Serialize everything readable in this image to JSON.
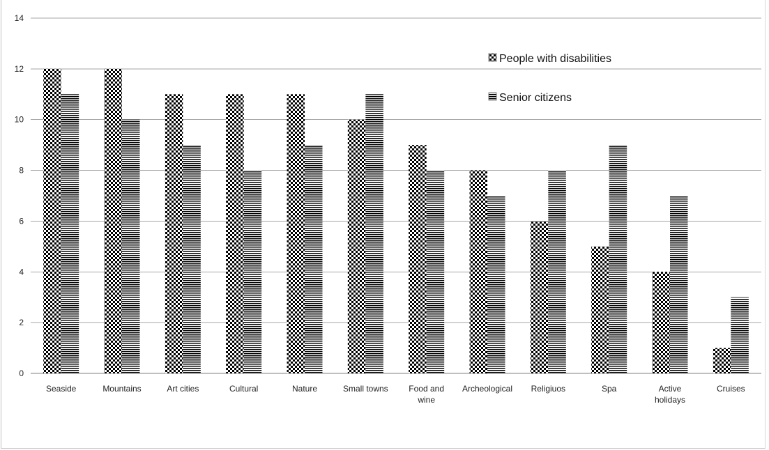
{
  "chart_data": {
    "type": "bar",
    "title": "",
    "xlabel": "",
    "ylabel": "",
    "ylim": [
      0,
      14
    ],
    "yticks": [
      0,
      2,
      4,
      6,
      8,
      10,
      12,
      14
    ],
    "grid": true,
    "legend_position": "top-right",
    "categories": [
      "Seaside",
      "Mountains",
      "Art cities",
      "Cultural",
      "Nature",
      "Small towns",
      "Food and wine",
      "Archeological",
      "Religiuos",
      "Spa",
      "Active holidays",
      "Cruises"
    ],
    "series": [
      {
        "name": "People with disabilities",
        "pattern": "checker",
        "values": [
          12,
          12,
          11,
          11,
          11,
          10,
          9,
          8,
          6,
          5,
          4,
          1
        ]
      },
      {
        "name": "Senior citizens",
        "pattern": "horizontal-stripes",
        "values": [
          11,
          10,
          9,
          8,
          9,
          11,
          8,
          7,
          8,
          9,
          7,
          3
        ]
      }
    ],
    "colors": {
      "bar_fill": "#000000",
      "gridline": "#a6a6a6",
      "axis": "#7f7f7f"
    }
  }
}
